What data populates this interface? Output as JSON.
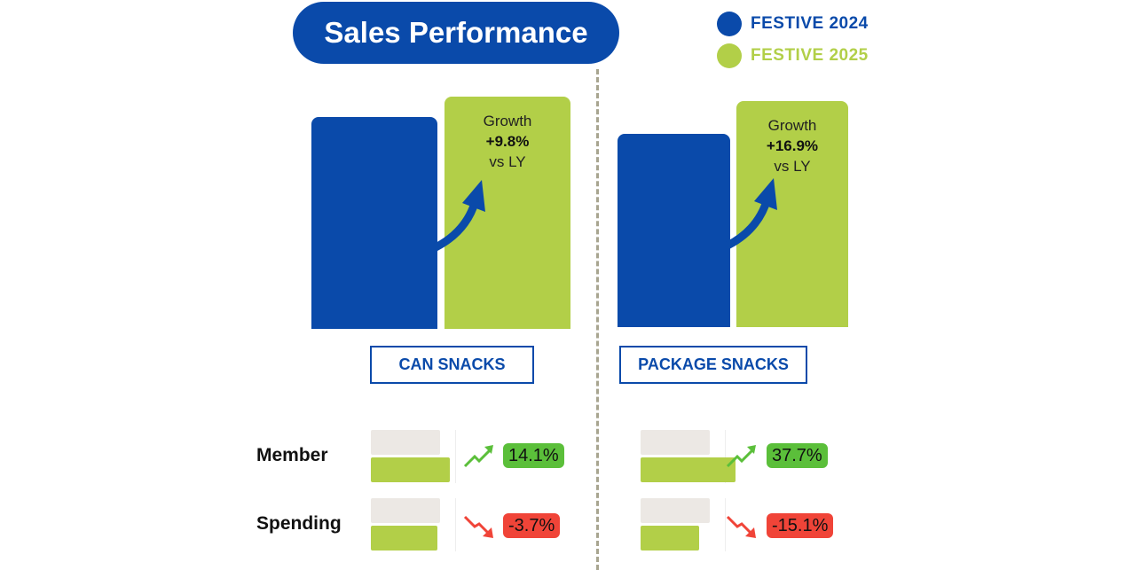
{
  "title": "Sales Performance",
  "colors": {
    "festive_2024": "#0a4aaa",
    "festive_2025": "#b2cf48",
    "small_2024": "#ece8e4",
    "positive": "#5bbf3a",
    "negative": "#f04438"
  },
  "chart_data": {
    "type": "bar",
    "legend": {
      "position": "top-right",
      "entries": [
        "FESTIVE 2024",
        "FESTIVE 2025"
      ]
    },
    "panels": [
      {
        "category": "CAN SNACKS",
        "sales_index": {
          "festive_2024": 100,
          "festive_2025": 109.8
        },
        "growth": {
          "label": "Growth",
          "value": "+9.8%",
          "suffix": "vs LY"
        },
        "metrics": [
          {
            "name": "Member",
            "festive_2024": 100,
            "festive_2025": 114.1,
            "change": "14.1%",
            "direction": "up"
          },
          {
            "name": "Spending",
            "festive_2024": 100,
            "festive_2025": 96.3,
            "change": "-3.7%",
            "direction": "down"
          }
        ]
      },
      {
        "category": "PACKAGE SNACKS",
        "sales_index": {
          "festive_2024": 100,
          "festive_2025": 116.9
        },
        "growth": {
          "label": "Growth",
          "value": "+16.9%",
          "suffix": "vs LY"
        },
        "metrics": [
          {
            "name": "Member",
            "festive_2024": 100,
            "festive_2025": 137.7,
            "change": "37.7%",
            "direction": "up"
          },
          {
            "name": "Spending",
            "festive_2024": 100,
            "festive_2025": 84.9,
            "change": "-15.1%",
            "direction": "down"
          }
        ]
      }
    ]
  }
}
